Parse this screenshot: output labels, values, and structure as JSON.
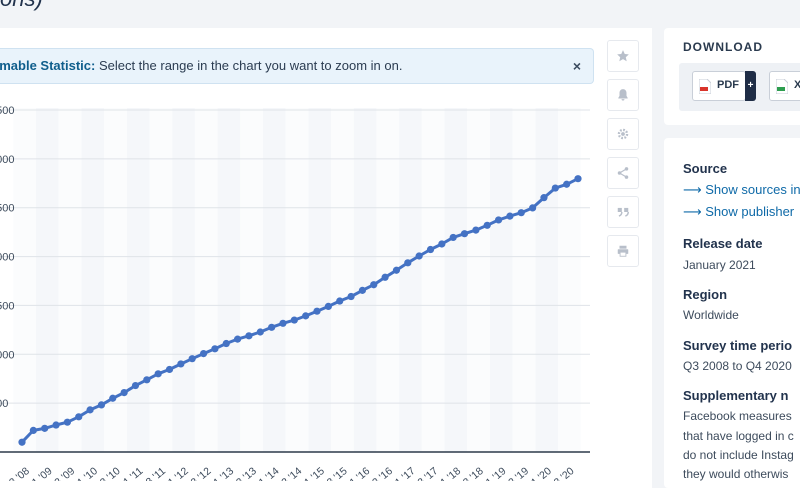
{
  "title_fragment": "ons)",
  "banner": {
    "bold": "emable Statistic:",
    "text": " Select the range in the chart you want to zoom in on.",
    "close": "×"
  },
  "tools": [
    {
      "name": "star-icon"
    },
    {
      "name": "bell-icon"
    },
    {
      "name": "gear-icon"
    },
    {
      "name": "share-icon"
    },
    {
      "name": "quote-icon"
    },
    {
      "name": "print-icon"
    }
  ],
  "download": {
    "title": "DOWNLOAD",
    "pdf_label": "PDF",
    "plus": "+",
    "xls_label": "X"
  },
  "meta": {
    "source_h": "Source",
    "show_sources": "Show sources in",
    "show_publisher": "Show publisher",
    "release_h": "Release date",
    "release_v": "January 2021",
    "region_h": "Region",
    "region_v": "Worldwide",
    "survey_h": "Survey time perio",
    "survey_v": "Q3 2008 to Q4 2020",
    "supp_h": "Supplementary n",
    "supp_lines": [
      "Facebook measures",
      "that have logged in c",
      "do not include Instag",
      "they would otherwis"
    ]
  },
  "chart_data": {
    "type": "line",
    "x": [
      "Q3 '08",
      "Q4 '08",
      "Q1 '09",
      "Q2 '09",
      "Q3 '09",
      "Q4 '09",
      "Q1 '10",
      "Q2 '10",
      "Q3 '10",
      "Q4 '10",
      "Q1 '11",
      "Q2 '11",
      "Q3 '11",
      "Q4 '11",
      "Q1 '12",
      "Q2 '12",
      "Q3 '12",
      "Q4 '12",
      "Q1 '13",
      "Q2 '13",
      "Q3 '13",
      "Q4 '13",
      "Q1 '14",
      "Q2 '14",
      "Q3 '14",
      "Q4 '14",
      "Q1 '15",
      "Q2 '15",
      "Q3 '15",
      "Q4 '15",
      "Q1 '16",
      "Q2 '16",
      "Q3 '16",
      "Q4 '16",
      "Q1 '17",
      "Q2 '17",
      "Q3 '17",
      "Q4 '17",
      "Q1 '18",
      "Q2 '18",
      "Q3 '18",
      "Q4 '18",
      "Q1 '19",
      "Q2 '19",
      "Q3 '19",
      "Q4 '19",
      "Q1 '20",
      "Q2 '20",
      "Q3 '20",
      "Q4 '20"
    ],
    "x_tick_labels": [
      "'08",
      "'09",
      "'09",
      "'10",
      "'10",
      "'11",
      "'11",
      "'12",
      "'12",
      "'13",
      "'13",
      "'14",
      "'14",
      "'15",
      "'15",
      "'16",
      "'16",
      "'17",
      "'17",
      "'18",
      "'18",
      "'19",
      "'19",
      "'20",
      "'20"
    ],
    "values": [
      100,
      221,
      242,
      276,
      305,
      360,
      431,
      482,
      550,
      608,
      680,
      739,
      800,
      845,
      901,
      955,
      1007,
      1056,
      1110,
      1155,
      1189,
      1228,
      1276,
      1317,
      1350,
      1393,
      1441,
      1490,
      1545,
      1591,
      1654,
      1712,
      1788,
      1860,
      1936,
      2006,
      2072,
      2129,
      2196,
      2234,
      2271,
      2320,
      2375,
      2414,
      2449,
      2498,
      2603,
      2701,
      2740,
      2797
    ],
    "ylim": [
      0,
      3500
    ],
    "grid": true
  }
}
